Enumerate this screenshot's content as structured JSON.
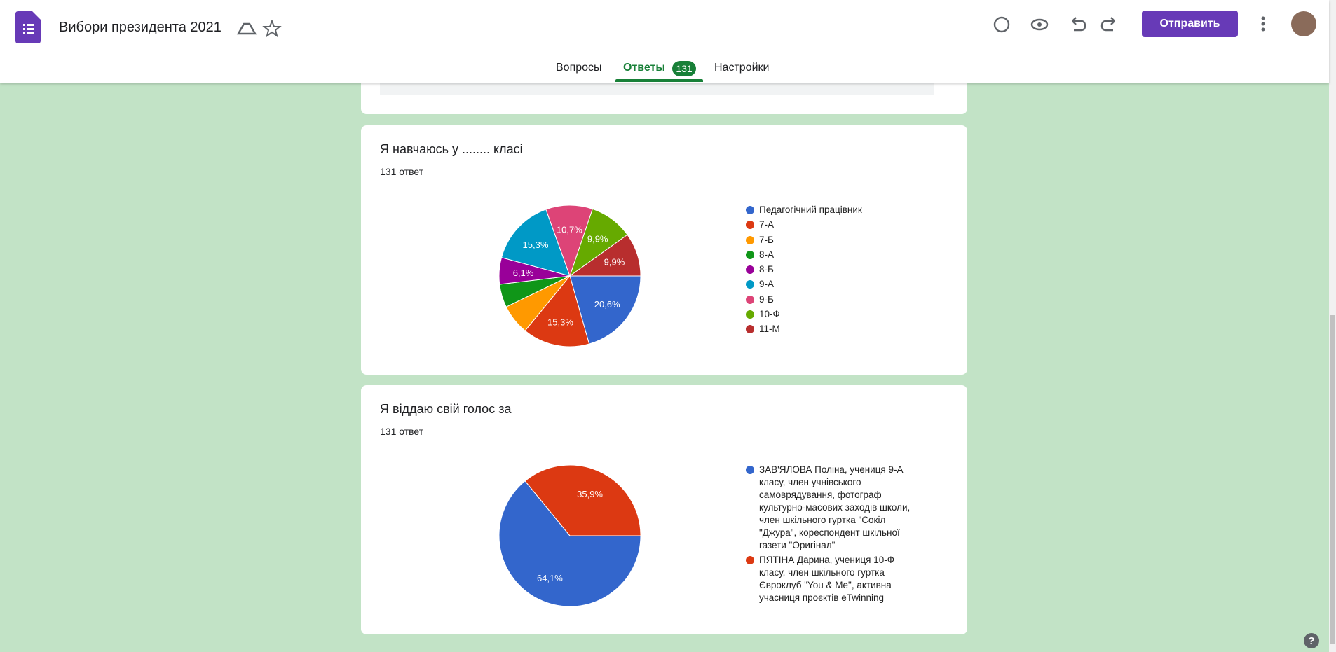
{
  "header": {
    "title": "Вибори президента 2021",
    "send_button": "Отправить"
  },
  "tabs": [
    "Вопросы",
    "Ответы",
    "Настройки"
  ],
  "response_badge": "131",
  "chart_data": [
    {
      "type": "pie",
      "title": "Я навчаюсь у ........ класі",
      "subtitle": "131 ответ",
      "categories": [
        "Педагогічний працівник",
        "7-А",
        "7-Б",
        "8-А",
        "8-Б",
        "9-А",
        "9-Б",
        "10-Ф",
        "11-М"
      ],
      "values": [
        20.6,
        15.3,
        6.9,
        5.3,
        6.1,
        15.3,
        10.7,
        9.9,
        9.9
      ],
      "value_labels": [
        "20,6%",
        "15,3%",
        null,
        null,
        "6,1%",
        "15,3%",
        "10,7%",
        "9,9%",
        "9,9%"
      ],
      "colors": [
        "#3366cc",
        "#dc3912",
        "#ff9900",
        "#109618",
        "#990099",
        "#0099c6",
        "#dd4477",
        "#66aa00",
        "#b82e2e"
      ]
    },
    {
      "type": "pie",
      "title": "Я віддаю свій голос за",
      "subtitle": "131 ответ",
      "categories": [
        "ЗАВ'ЯЛОВА Поліна, учениця 9-А класу, член учнівського самоврядування, фотограф культурно-масових заходів школи, член шкільного гуртка \"Сокіл \"Джура\", кореспондент шкільної газети \"Оригінал\"",
        "ПЯТІНА Дарина, учениця 10-Ф класу, член шкільного гуртка Євроклуб \"You & Me\", активна учасниця проєктів eTwinning"
      ],
      "values": [
        64.1,
        35.9
      ],
      "value_labels": [
        "64,1%",
        "35,9%"
      ],
      "colors": [
        "#3366cc",
        "#dc3912"
      ]
    }
  ]
}
